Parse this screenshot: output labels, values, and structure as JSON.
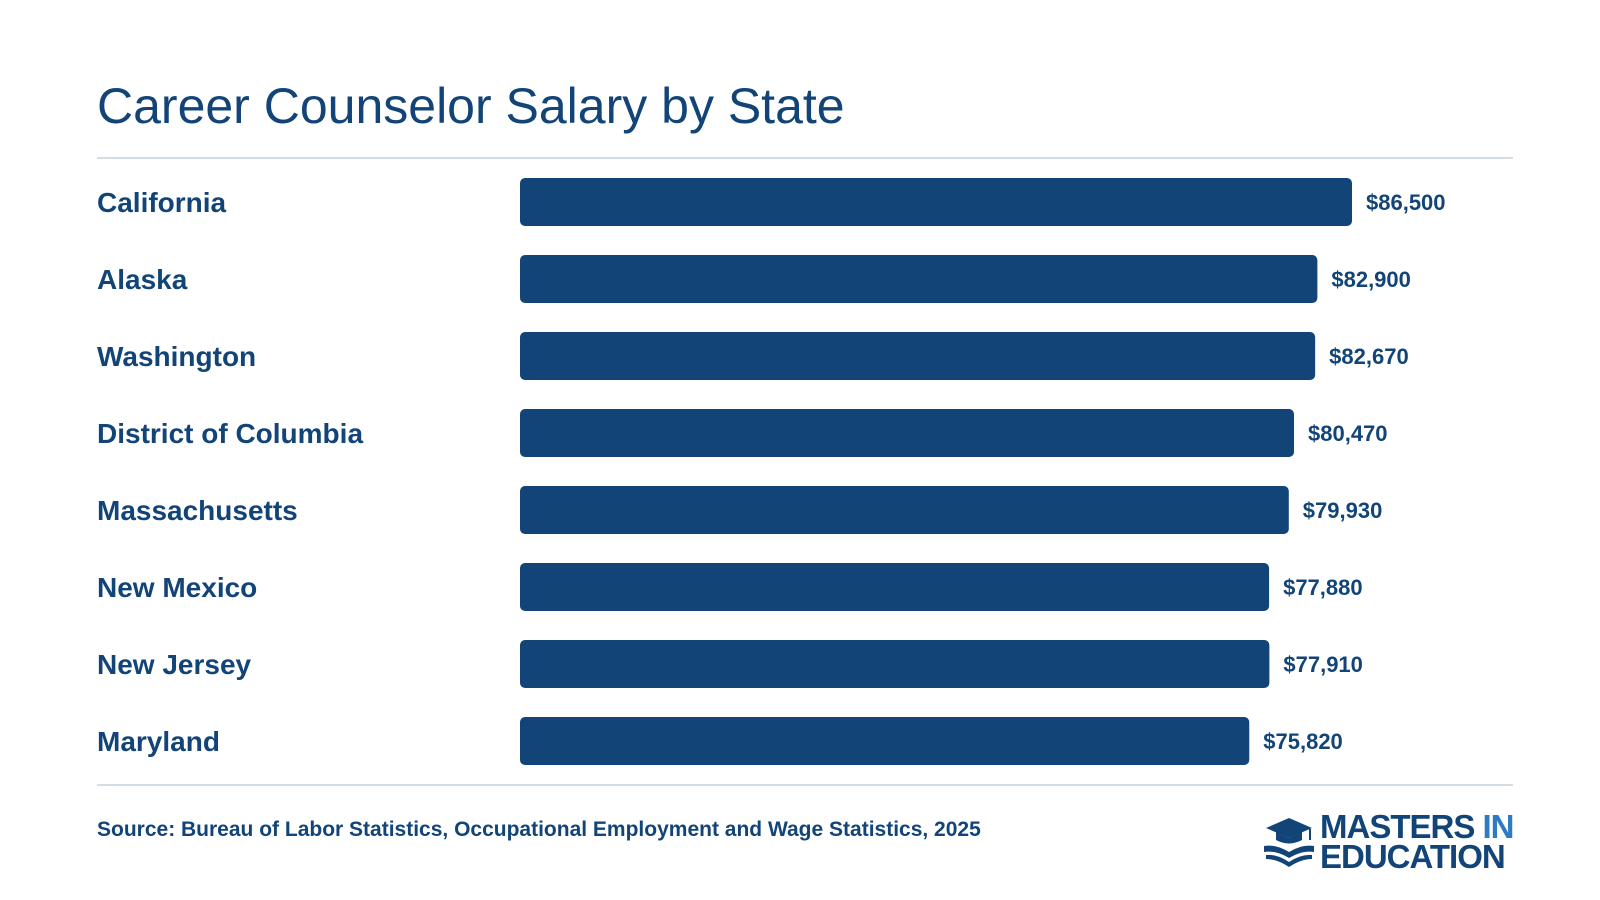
{
  "title": "Career Counselor Salary by State",
  "source": "Source: Bureau of Labor Statistics, Occupational Employment and Wage Statistics, 2025",
  "logo": {
    "word1": "MASTERS",
    "word2": "IN",
    "word3": "EDUCATION",
    "icon": "graduation-cap-book-icon"
  },
  "colors": {
    "bar": "#124478",
    "text": "#124478",
    "accent": "#2f7ac6",
    "rule": "#d5dde4"
  },
  "chart_data": {
    "type": "bar",
    "orientation": "horizontal",
    "title": "Career Counselor Salary by State",
    "categories": [
      "California",
      "Alaska",
      "Washington",
      "District of Columbia",
      "Massachusetts",
      "New Mexico",
      "New Jersey",
      "Maryland"
    ],
    "values": [
      86500,
      82900,
      82670,
      80470,
      79930,
      77880,
      77910,
      75820
    ],
    "data_labels": [
      "$86,500",
      "$82,900",
      "$82,670",
      "$80,470",
      "$79,930",
      "$77,880",
      "$77,910",
      "$75,820"
    ],
    "xlim": [
      0,
      86500
    ],
    "grid": false,
    "legend": "none"
  }
}
